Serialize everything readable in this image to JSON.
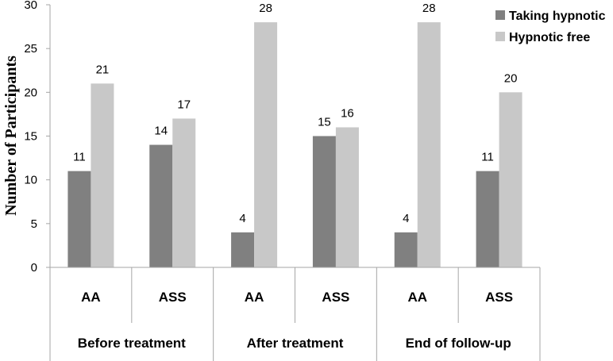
{
  "chart_data": {
    "type": "bar",
    "title": "",
    "ylabel": "Number of Participants",
    "xlabel": "",
    "ylim": [
      0,
      30
    ],
    "yticks": [
      0,
      5,
      10,
      15,
      20,
      25,
      30
    ],
    "grid": false,
    "legend_position": "top-right",
    "groups": [
      "Before treatment",
      "After treatment",
      "End of follow-up"
    ],
    "categories": [
      "AA",
      "ASS",
      "AA",
      "ASS",
      "AA",
      "ASS"
    ],
    "series": [
      {
        "name": "Taking hypnotic",
        "color": "#808080",
        "values": [
          11,
          14,
          4,
          15,
          4,
          11
        ]
      },
      {
        "name": "Hypnotic free",
        "color": "#c8c8c8",
        "values": [
          21,
          17,
          28,
          16,
          28,
          20
        ]
      }
    ]
  }
}
